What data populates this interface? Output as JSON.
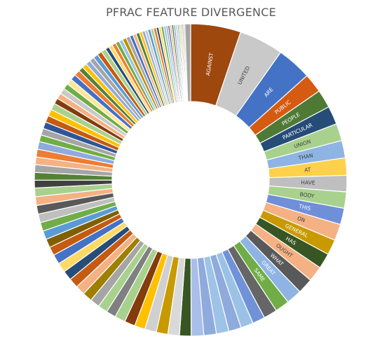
{
  "chart_data": {
    "type": "pie",
    "variant": "donut",
    "title": "PFRAC FEATURE DIVERGENCE",
    "legend": "none",
    "slices": [
      {
        "label": "AGAINST",
        "value": 5.2,
        "color": "#9E480E",
        "text_color": "#ffffff"
      },
      {
        "label": "UNITED",
        "value": 4.6,
        "color": "#C9C9C9",
        "text_color": "#404040"
      },
      {
        "label": "ARE",
        "value": 3.6,
        "color": "#4472C4",
        "text_color": "#ffffff"
      },
      {
        "label": "PUBLIC",
        "value": 2.0,
        "color": "#D55B12",
        "text_color": "#ffffff"
      },
      {
        "label": "PEOPLE",
        "value": 1.9,
        "color": "#4E7A36",
        "text_color": "#ffffff"
      },
      {
        "label": "PARTICULAR",
        "value": 1.9,
        "color": "#264C78",
        "text_color": "#ffffff"
      },
      {
        "label": "UNION",
        "value": 1.8,
        "color": "#A9D18E",
        "text_color": "#404040"
      },
      {
        "label": "THAN",
        "value": 1.8,
        "color": "#8EB4E3",
        "text_color": "#404040"
      },
      {
        "label": "AT",
        "value": 1.8,
        "color": "#FFD04A",
        "text_color": "#404040"
      },
      {
        "label": "HAVE",
        "value": 1.7,
        "color": "#BFBFBF",
        "text_color": "#404040"
      },
      {
        "label": "BODY",
        "value": 1.7,
        "color": "#A9D18E",
        "text_color": "#404040"
      },
      {
        "label": "THIS",
        "value": 1.7,
        "color": "#6F8FD8",
        "text_color": "#ffffff"
      },
      {
        "label": "ON",
        "value": 1.7,
        "color": "#F4B183",
        "text_color": "#404040"
      },
      {
        "label": "GENERAL",
        "value": 1.6,
        "color": "#C89A00",
        "text_color": "#ffffff"
      },
      {
        "label": "HAS",
        "value": 1.6,
        "color": "#375623",
        "text_color": "#ffffff"
      },
      {
        "label": "OUGHT",
        "value": 1.6,
        "color": "#F4B183",
        "text_color": "#404040"
      },
      {
        "label": "WHAT",
        "value": 1.6,
        "color": "#595959",
        "text_color": "#ffffff"
      },
      {
        "label": "GREAT",
        "value": 1.6,
        "color": "#8FB4E3",
        "text_color": "#ffffff"
      },
      {
        "label": "SAME",
        "value": 1.5,
        "color": "#70AD47",
        "text_color": "#ffffff"
      },
      {
        "label": "",
        "value": 1.4,
        "color": "#666666"
      },
      {
        "label": "",
        "value": 1.3,
        "color": "#7092D8"
      },
      {
        "label": "",
        "value": 1.3,
        "color": "#9BC2E6"
      },
      {
        "label": "",
        "value": 1.3,
        "color": "#8FAADC"
      },
      {
        "label": "",
        "value": 1.3,
        "color": "#9DC3E6"
      },
      {
        "label": "",
        "value": 1.3,
        "color": "#8FAADC"
      },
      {
        "label": "",
        "value": 1.3,
        "color": "#A9BEE8"
      },
      {
        "label": "",
        "value": 1.2,
        "color": "#375623"
      },
      {
        "label": "",
        "value": 1.2,
        "color": "#D9D9D9"
      },
      {
        "label": "",
        "value": 1.2,
        "color": "#C89A00"
      },
      {
        "label": "",
        "value": 1.2,
        "color": "#D0D0D0"
      },
      {
        "label": "",
        "value": 1.1,
        "color": "#FFC000"
      },
      {
        "label": "",
        "value": 1.1,
        "color": "#843C0C"
      },
      {
        "label": "",
        "value": 1.1,
        "color": "#A9D18E"
      },
      {
        "label": "",
        "value": 1.0,
        "color": "#808080"
      },
      {
        "label": "",
        "value": 1.0,
        "color": "#A9D18E"
      },
      {
        "label": "",
        "value": 1.0,
        "color": "#A5A5A5"
      },
      {
        "label": "",
        "value": 1.0,
        "color": "#9E7F00"
      },
      {
        "label": "",
        "value": 1.0,
        "color": "#F4B183"
      },
      {
        "label": "",
        "value": 1.0,
        "color": "#C55A11"
      },
      {
        "label": "",
        "value": 1.0,
        "color": "#264C78"
      },
      {
        "label": "",
        "value": 1.0,
        "color": "#FFD966"
      },
      {
        "label": "",
        "value": 1.0,
        "color": "#4472C4"
      },
      {
        "label": "",
        "value": 0.9,
        "color": "#C55A11"
      },
      {
        "label": "",
        "value": 0.9,
        "color": "#7F6000"
      },
      {
        "label": "",
        "value": 0.9,
        "color": "#5B9BD5"
      },
      {
        "label": "",
        "value": 0.9,
        "color": "#70AD47"
      },
      {
        "label": "",
        "value": 0.9,
        "color": "#BFBFBF"
      },
      {
        "label": "",
        "value": 0.9,
        "color": "#595959"
      },
      {
        "label": "",
        "value": 0.9,
        "color": "#F4B183"
      },
      {
        "label": "",
        "value": 0.9,
        "color": "#A9D18E"
      },
      {
        "label": "",
        "value": 0.8,
        "color": "#404040"
      },
      {
        "label": "",
        "value": 0.8,
        "color": "#548235"
      },
      {
        "label": "",
        "value": 0.8,
        "color": "#A5A5A5"
      },
      {
        "label": "",
        "value": 0.8,
        "color": "#F4B183"
      },
      {
        "label": "",
        "value": 0.8,
        "color": "#ED7D31"
      },
      {
        "label": "",
        "value": 0.8,
        "color": "#8FAADC"
      },
      {
        "label": "",
        "value": 0.7,
        "color": "#70AD47"
      },
      {
        "label": "",
        "value": 0.7,
        "color": "#A5A5A5"
      },
      {
        "label": "",
        "value": 0.7,
        "color": "#2F5597"
      },
      {
        "label": "",
        "value": 0.7,
        "color": "#C55A11"
      },
      {
        "label": "",
        "value": 0.7,
        "color": "#FFC000"
      },
      {
        "label": "",
        "value": 0.7,
        "color": "#A9D18E"
      },
      {
        "label": "",
        "value": 0.6,
        "color": "#843C0C"
      },
      {
        "label": "",
        "value": 0.6,
        "color": "#F4B183"
      },
      {
        "label": "",
        "value": 0.6,
        "color": "#C9C9C9"
      },
      {
        "label": "",
        "value": 0.6,
        "color": "#70AD47"
      },
      {
        "label": "",
        "value": 0.6,
        "color": "#FFE699"
      },
      {
        "label": "",
        "value": 0.6,
        "color": "#4472C4"
      },
      {
        "label": "",
        "value": 0.6,
        "color": "#ED7D31"
      },
      {
        "label": "",
        "value": 0.5,
        "color": "#548235"
      },
      {
        "label": "",
        "value": 0.5,
        "color": "#FFC000"
      },
      {
        "label": "",
        "value": 0.5,
        "color": "#8FAADC"
      },
      {
        "label": "",
        "value": 0.5,
        "color": "#A5A5A5"
      },
      {
        "label": "",
        "value": 0.5,
        "color": "#5B9BD5"
      },
      {
        "label": "",
        "value": 0.5,
        "color": "#C55A11"
      },
      {
        "label": "",
        "value": 0.5,
        "color": "#A9D18E"
      },
      {
        "label": "",
        "value": 0.4,
        "color": "#264C78"
      },
      {
        "label": "",
        "value": 0.4,
        "color": "#FFD966"
      },
      {
        "label": "",
        "value": 0.4,
        "color": "#ED7D31"
      },
      {
        "label": "",
        "value": 0.4,
        "color": "#70AD47"
      },
      {
        "label": "",
        "value": 0.4,
        "color": "#9DC3E6"
      },
      {
        "label": "",
        "value": 0.4,
        "color": "#BF9000"
      },
      {
        "label": "",
        "value": 0.4,
        "color": "#A5A5A5"
      },
      {
        "label": "",
        "value": 0.35,
        "color": "#4472C4"
      },
      {
        "label": "",
        "value": 0.35,
        "color": "#F4B183"
      },
      {
        "label": "",
        "value": 0.35,
        "color": "#548235"
      },
      {
        "label": "",
        "value": 0.3,
        "color": "#FFC000"
      },
      {
        "label": "",
        "value": 0.3,
        "color": "#8FAADC"
      },
      {
        "label": "",
        "value": 0.3,
        "color": "#C9C9C9"
      },
      {
        "label": "",
        "value": 0.3,
        "color": "#5B9BD5"
      },
      {
        "label": "",
        "value": 0.3,
        "color": "#A9D18E"
      },
      {
        "label": "",
        "value": 0.3,
        "color": "#ED7D31"
      },
      {
        "label": "",
        "value": 0.25,
        "color": "#264C78"
      },
      {
        "label": "",
        "value": 0.25,
        "color": "#FFD966"
      },
      {
        "label": "",
        "value": 0.25,
        "color": "#70AD47"
      },
      {
        "label": "",
        "value": 0.25,
        "color": "#9DC3E6"
      },
      {
        "label": "",
        "value": 0.2,
        "color": "#A5A5A5"
      },
      {
        "label": "",
        "value": 0.2,
        "color": "#4472C4"
      },
      {
        "label": "",
        "value": 0.2,
        "color": "#F4B183"
      },
      {
        "label": "",
        "value": 0.2,
        "color": "#548235"
      },
      {
        "label": "",
        "value": 0.2,
        "color": "#8FAADC"
      },
      {
        "label": "",
        "value": 0.2,
        "color": "#C9C9C9"
      },
      {
        "label": "",
        "value": 0.15,
        "color": "#5B9BD5"
      },
      {
        "label": "",
        "value": 0.15,
        "color": "#A9D18E"
      },
      {
        "label": "",
        "value": 0.15,
        "color": "#FFC000"
      },
      {
        "label": "",
        "value": 0.15,
        "color": "#8FAADC"
      },
      {
        "label": "",
        "value": 0.15,
        "color": "#BFBFBF"
      },
      {
        "label": "",
        "value": 0.6,
        "color": "#A5A5A5"
      }
    ]
  }
}
